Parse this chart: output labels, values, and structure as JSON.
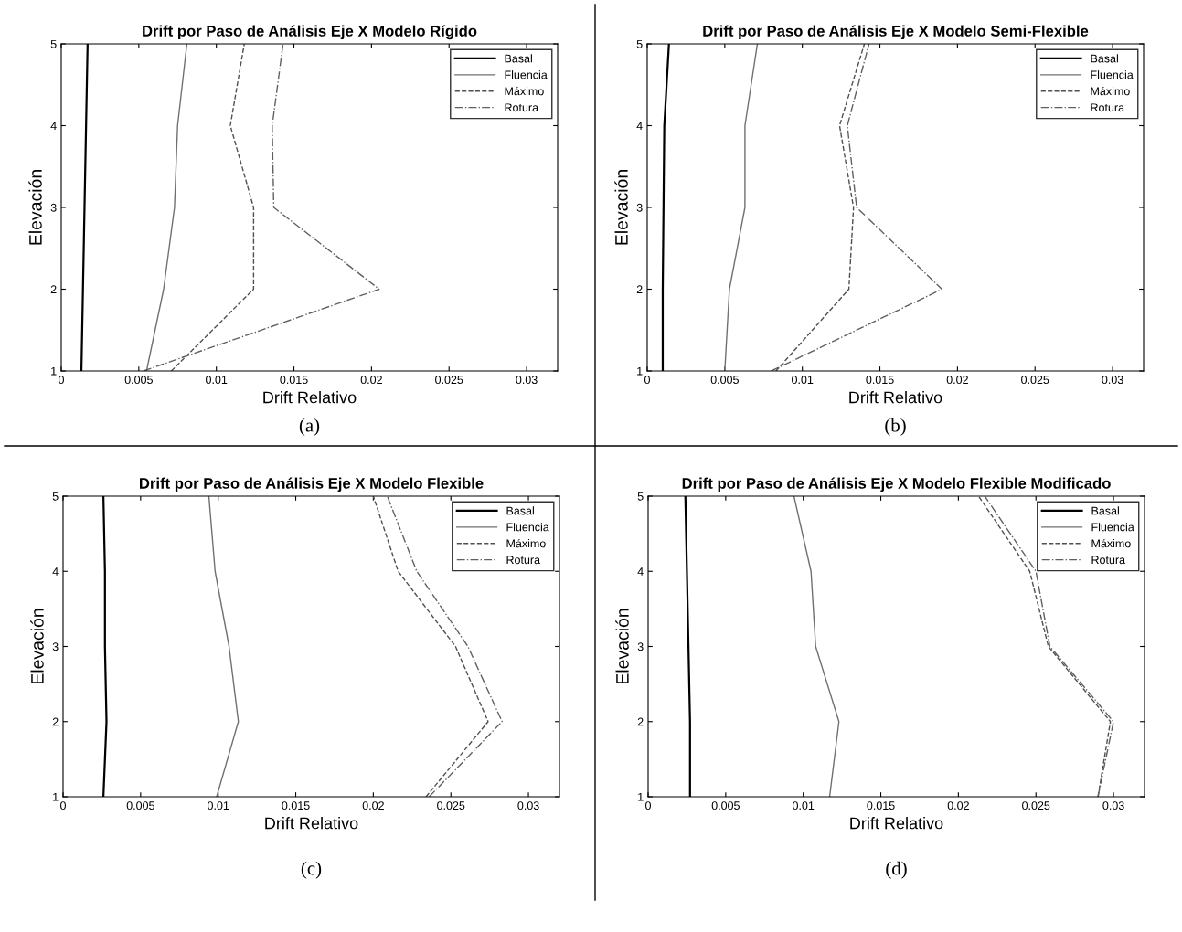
{
  "chart_data": [
    {
      "type": "line",
      "title": "Drift por Paso de Análisis Eje X Modelo Rígido",
      "xlabel": "Drift Relativo",
      "ylabel": "Elevación",
      "annotations": [
        "(a)"
      ],
      "xlim": [
        0,
        0.032
      ],
      "xticks": [
        0,
        0.005,
        0.01,
        0.015,
        0.02,
        0.025,
        0.03
      ],
      "ylim": [
        1,
        5
      ],
      "yticks": [
        1,
        2,
        3,
        4,
        5
      ],
      "legend": "top right",
      "grid": false,
      "series": [
        {
          "name": "Basal",
          "color": "#000000",
          "line_style": "solid",
          "x": [
            0.0013,
            0.0014,
            0.0015,
            0.0016,
            0.0017
          ],
          "values": [
            1,
            2,
            3,
            4,
            5
          ]
        },
        {
          "name": "Fluencia",
          "color": "#707070",
          "line_style": "solid",
          "x": [
            0.0055,
            0.0066,
            0.0073,
            0.0075,
            0.0081
          ],
          "values": [
            1,
            2,
            3,
            4,
            5
          ]
        },
        {
          "name": "Máximo",
          "color": "#505050",
          "line_style": "dashed",
          "x": [
            0.0071,
            0.0124,
            0.0124,
            0.0109,
            0.0118
          ],
          "values": [
            1,
            2,
            3,
            4,
            5
          ]
        },
        {
          "name": "Rotura",
          "color": "#606060",
          "line_style": "dashdot",
          "x": [
            0.0053,
            0.0205,
            0.0137,
            0.0136,
            0.0143
          ],
          "values": [
            1,
            2,
            3,
            4,
            5
          ]
        }
      ]
    },
    {
      "type": "line",
      "title": "Drift por Paso de Análisis Eje X Modelo Semi-Flexible",
      "xlabel": "Drift Relativo",
      "ylabel": "Elevación",
      "annotations": [
        "(b)"
      ],
      "xlim": [
        0,
        0.032
      ],
      "xticks": [
        0,
        0.005,
        0.01,
        0.015,
        0.02,
        0.025,
        0.03
      ],
      "ylim": [
        1,
        5
      ],
      "yticks": [
        1,
        2,
        3,
        4,
        5
      ],
      "legend": "top right",
      "grid": false,
      "series": [
        {
          "name": "Basal",
          "color": "#000000",
          "line_style": "solid",
          "x": [
            0.001,
            0.001,
            0.00105,
            0.0011,
            0.0014
          ],
          "values": [
            1,
            2,
            3,
            4,
            5
          ]
        },
        {
          "name": "Fluencia",
          "color": "#707070",
          "line_style": "solid",
          "x": [
            0.005,
            0.0053,
            0.0063,
            0.0063,
            0.0071
          ],
          "values": [
            1,
            2,
            3,
            4,
            5
          ]
        },
        {
          "name": "Máximo",
          "color": "#505050",
          "line_style": "dashed",
          "x": [
            0.0083,
            0.013,
            0.0133,
            0.0124,
            0.014
          ],
          "values": [
            1,
            2,
            3,
            4,
            5
          ]
        },
        {
          "name": "Rotura",
          "color": "#606060",
          "line_style": "dashdot",
          "x": [
            0.008,
            0.019,
            0.0135,
            0.0129,
            0.0143
          ],
          "values": [
            1,
            2,
            3,
            4,
            5
          ]
        }
      ]
    },
    {
      "type": "line",
      "title": "Drift por Paso de Análisis Eje X Modelo Flexible",
      "xlabel": "Drift Relativo",
      "ylabel": "Elevación",
      "annotations": [
        "(c)"
      ],
      "xlim": [
        0,
        0.032
      ],
      "xticks": [
        0,
        0.005,
        0.01,
        0.015,
        0.02,
        0.025,
        0.03
      ],
      "ylim": [
        1,
        5
      ],
      "yticks": [
        1,
        2,
        3,
        4,
        5
      ],
      "legend": "top right",
      "grid": false,
      "series": [
        {
          "name": "Basal",
          "color": "#000000",
          "line_style": "solid",
          "x": [
            0.0026,
            0.0028,
            0.0027,
            0.0027,
            0.0026
          ],
          "values": [
            1,
            2,
            3,
            4,
            5
          ]
        },
        {
          "name": "Fluencia",
          "color": "#707070",
          "line_style": "solid",
          "x": [
            0.0099,
            0.0113,
            0.0107,
            0.0098,
            0.0094
          ],
          "values": [
            1,
            2,
            3,
            4,
            5
          ]
        },
        {
          "name": "Máximo",
          "color": "#505050",
          "line_style": "dashed",
          "x": [
            0.0234,
            0.0274,
            0.0253,
            0.0216,
            0.02
          ],
          "values": [
            1,
            2,
            3,
            4,
            5
          ]
        },
        {
          "name": "Rotura",
          "color": "#606060",
          "line_style": "dashdot",
          "x": [
            0.0236,
            0.0283,
            0.0261,
            0.0228,
            0.0209
          ],
          "values": [
            1,
            2,
            3,
            4,
            5
          ]
        }
      ]
    },
    {
      "type": "line",
      "title": "Drift por Paso de Análisis Eje X Modelo Flexible Modificado",
      "xlabel": "Drift Relativo",
      "ylabel": "Elevación",
      "annotations": [
        "(d)"
      ],
      "xlim": [
        0,
        0.032
      ],
      "xticks": [
        0,
        0.005,
        0.01,
        0.015,
        0.02,
        0.025,
        0.03
      ],
      "ylim": [
        1,
        5
      ],
      "yticks": [
        1,
        2,
        3,
        4,
        5
      ],
      "legend": "top right",
      "grid": false,
      "series": [
        {
          "name": "Basal",
          "color": "#000000",
          "line_style": "solid",
          "x": [
            0.0027,
            0.0027,
            0.0026,
            0.0025,
            0.0024
          ],
          "values": [
            1,
            2,
            3,
            4,
            5
          ]
        },
        {
          "name": "Fluencia",
          "color": "#707070",
          "line_style": "solid",
          "x": [
            0.0117,
            0.0123,
            0.0108,
            0.0105,
            0.0094
          ],
          "values": [
            1,
            2,
            3,
            4,
            5
          ]
        },
        {
          "name": "Máximo",
          "color": "#505050",
          "line_style": "dashed",
          "x": [
            0.029,
            0.0298,
            0.0258,
            0.0246,
            0.0213
          ],
          "values": [
            1,
            2,
            3,
            4,
            5
          ]
        },
        {
          "name": "Rotura",
          "color": "#606060",
          "line_style": "dashdot",
          "x": [
            0.029,
            0.03,
            0.0259,
            0.025,
            0.0217
          ],
          "values": [
            1,
            2,
            3,
            4,
            5
          ]
        }
      ]
    }
  ]
}
